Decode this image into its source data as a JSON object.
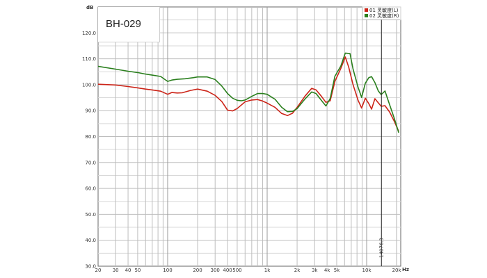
{
  "colors": {
    "left": "#cc2418",
    "right": "#2a7f1d",
    "grid": "#bdbdbd",
    "gridMinor": "#d9d9d9"
  },
  "label_box": {
    "text": "BH-029"
  },
  "cursor": {
    "x": 14076.3,
    "label": "14076.3"
  },
  "chart_data": {
    "type": "line",
    "x_scale": "log",
    "xlim": [
      20,
      22000
    ],
    "ylim": [
      30,
      130
    ],
    "grid": true,
    "xlabel": "Hz",
    "ylabel": "dB",
    "legend_position": "top-right",
    "x_ticks": [
      {
        "v": 20,
        "t": "20"
      },
      {
        "v": 30,
        "t": "30"
      },
      {
        "v": 40,
        "t": "40"
      },
      {
        "v": 50,
        "t": "50"
      },
      {
        "v": 100,
        "t": "100"
      },
      {
        "v": 200,
        "t": "200"
      },
      {
        "v": 300,
        "t": "300"
      },
      {
        "v": 400,
        "t": "400"
      },
      {
        "v": 500,
        "t": "500"
      },
      {
        "v": 1000,
        "t": "1k"
      },
      {
        "v": 2000,
        "t": "2k"
      },
      {
        "v": 3000,
        "t": "3k"
      },
      {
        "v": 4000,
        "t": "4k"
      },
      {
        "v": 5000,
        "t": "5k"
      },
      {
        "v": 10000,
        "t": "10k"
      },
      {
        "v": 20000,
        "t": "20k"
      }
    ],
    "y_ticks": [
      {
        "v": 30,
        "t": "30.0"
      },
      {
        "v": 40,
        "t": "40.0"
      },
      {
        "v": 50,
        "t": "50.0"
      },
      {
        "v": 60,
        "t": "60.0"
      },
      {
        "v": 70,
        "t": "70.0"
      },
      {
        "v": 80,
        "t": "80.0"
      },
      {
        "v": 90,
        "t": "90.0"
      },
      {
        "v": 100,
        "t": "100.0"
      },
      {
        "v": 110,
        "t": "110.0"
      },
      {
        "v": 120,
        "t": "120.0"
      }
    ],
    "series": [
      {
        "name": "01 灵敏度(L)",
        "color": "#cc2418",
        "points": [
          [
            20,
            100.2
          ],
          [
            30,
            99.9
          ],
          [
            40,
            99.3
          ],
          [
            50,
            98.8
          ],
          [
            60,
            98.3
          ],
          [
            70,
            98.0
          ],
          [
            85,
            97.5
          ],
          [
            100,
            96.3
          ],
          [
            110,
            97.0
          ],
          [
            125,
            96.8
          ],
          [
            140,
            96.9
          ],
          [
            170,
            97.8
          ],
          [
            200,
            98.3
          ],
          [
            250,
            97.5
          ],
          [
            300,
            95.9
          ],
          [
            350,
            93.5
          ],
          [
            400,
            90.2
          ],
          [
            450,
            89.9
          ],
          [
            500,
            90.8
          ],
          [
            600,
            93.4
          ],
          [
            700,
            94.1
          ],
          [
            800,
            94.3
          ],
          [
            900,
            93.7
          ],
          [
            1000,
            92.9
          ],
          [
            1200,
            91.3
          ],
          [
            1400,
            88.9
          ],
          [
            1600,
            88.1
          ],
          [
            1800,
            89.0
          ],
          [
            2000,
            91.3
          ],
          [
            2400,
            95.6
          ],
          [
            2800,
            98.6
          ],
          [
            3100,
            98.0
          ],
          [
            3500,
            95.6
          ],
          [
            3900,
            93.2
          ],
          [
            4300,
            93.8
          ],
          [
            4800,
            101.3
          ],
          [
            5500,
            106.3
          ],
          [
            6100,
            110.7
          ],
          [
            6600,
            106.8
          ],
          [
            7300,
            100.0
          ],
          [
            8200,
            94.0
          ],
          [
            8900,
            91.0
          ],
          [
            9700,
            94.8
          ],
          [
            10500,
            92.7
          ],
          [
            11200,
            90.6
          ],
          [
            12100,
            94.6
          ],
          [
            13100,
            93.0
          ],
          [
            14000,
            91.7
          ],
          [
            15300,
            91.9
          ],
          [
            17000,
            89.5
          ],
          [
            19000,
            85.8
          ],
          [
            21000,
            82.0
          ]
        ]
      },
      {
        "name": "02 灵敏度(R)",
        "color": "#2a7f1d",
        "points": [
          [
            20,
            107.1
          ],
          [
            30,
            106.0
          ],
          [
            40,
            105.2
          ],
          [
            50,
            104.7
          ],
          [
            60,
            104.1
          ],
          [
            70,
            103.7
          ],
          [
            85,
            103.2
          ],
          [
            100,
            101.3
          ],
          [
            110,
            101.8
          ],
          [
            125,
            102.1
          ],
          [
            150,
            102.3
          ],
          [
            180,
            102.7
          ],
          [
            200,
            103.0
          ],
          [
            250,
            103.0
          ],
          [
            300,
            102.0
          ],
          [
            350,
            99.5
          ],
          [
            400,
            96.6
          ],
          [
            450,
            94.8
          ],
          [
            500,
            94.0
          ],
          [
            550,
            93.8
          ],
          [
            600,
            94.1
          ],
          [
            700,
            95.5
          ],
          [
            800,
            96.6
          ],
          [
            900,
            96.6
          ],
          [
            1000,
            96.3
          ],
          [
            1200,
            94.4
          ],
          [
            1400,
            91.3
          ],
          [
            1600,
            89.6
          ],
          [
            1800,
            89.7
          ],
          [
            2000,
            90.8
          ],
          [
            2400,
            94.5
          ],
          [
            2800,
            97.2
          ],
          [
            3100,
            96.6
          ],
          [
            3500,
            94.0
          ],
          [
            3900,
            91.8
          ],
          [
            4300,
            94.7
          ],
          [
            4800,
            103.3
          ],
          [
            5500,
            107.2
          ],
          [
            6100,
            112.2
          ],
          [
            6800,
            112.0
          ],
          [
            7300,
            106.0
          ],
          [
            8200,
            99.0
          ],
          [
            8900,
            95.1
          ],
          [
            9700,
            100.6
          ],
          [
            10500,
            102.7
          ],
          [
            11200,
            103.1
          ],
          [
            12100,
            100.8
          ],
          [
            13100,
            97.6
          ],
          [
            14000,
            96.2
          ],
          [
            15300,
            97.6
          ],
          [
            16500,
            93.8
          ],
          [
            19000,
            86.9
          ],
          [
            21000,
            81.5
          ]
        ]
      }
    ]
  }
}
